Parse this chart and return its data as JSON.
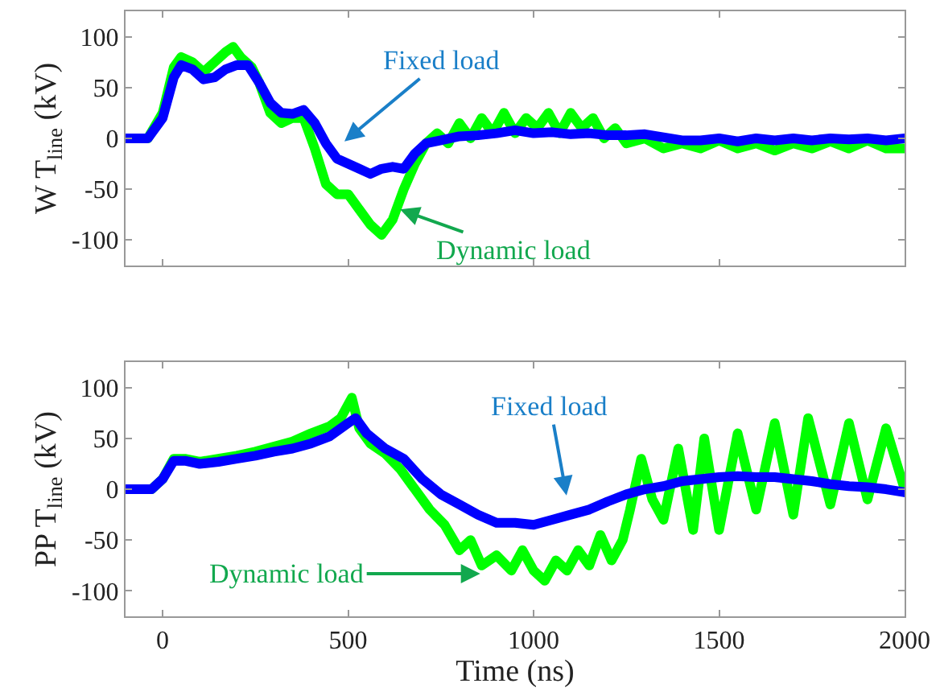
{
  "chart_data": [
    {
      "type": "line",
      "ylabel": "W T$_{line}$ (kV)",
      "xlim": [
        -100,
        2000
      ],
      "xticks": [
        {
          "value": 0,
          "label": null
        },
        {
          "value": 500,
          "label": null
        },
        {
          "value": 1000,
          "label": null
        },
        {
          "value": 1500,
          "label": null
        },
        {
          "value": 2000,
          "label": null
        }
      ],
      "ylim": [
        -125,
        125
      ],
      "yticks": [
        -100,
        -50,
        0,
        50,
        100
      ],
      "tick_labels": "y",
      "annotations": [
        "Fixed load",
        {
          "text": "Dynamic load",
          "x": 640,
          "y": -70
        }
      ],
      "series": [
        {
          "color": "#00ff00",
          "x": [
            -100,
            -40,
            0,
            30,
            50,
            80,
            110,
            140,
            170,
            190,
            210,
            240,
            260,
            290,
            320,
            350,
            380,
            410,
            440,
            470,
            500,
            530,
            560,
            590,
            620,
            650,
            680,
            710,
            740,
            770,
            800,
            830,
            860,
            890,
            920,
            950,
            980,
            1010,
            1040,
            1070,
            1100,
            1130,
            1160,
            1190,
            1220,
            1250,
            1300,
            1350,
            1400,
            1450,
            1500,
            1550,
            1600,
            1650,
            1700,
            1750,
            1800,
            1850,
            1900,
            1950,
            2000
          ],
          "values": [
            0,
            0,
            25,
            70,
            80,
            75,
            65,
            75,
            85,
            90,
            80,
            70,
            55,
            25,
            15,
            20,
            20,
            -10,
            -45,
            -55,
            -55,
            -70,
            -85,
            -95,
            -80,
            -50,
            -25,
            -5,
            5,
            -5,
            15,
            0,
            20,
            5,
            25,
            5,
            20,
            10,
            25,
            5,
            25,
            10,
            20,
            0,
            10,
            -5,
            0,
            -10,
            -5,
            -10,
            -2,
            -10,
            -5,
            -12,
            -5,
            -10,
            -3,
            -10,
            -2,
            -10,
            -10
          ]
        },
        {
          "color": "#0000ff",
          "x": [
            -100,
            -40,
            0,
            30,
            50,
            80,
            110,
            140,
            170,
            200,
            230,
            260,
            290,
            320,
            350,
            380,
            410,
            440,
            470,
            500,
            530,
            560,
            590,
            620,
            650,
            680,
            710,
            750,
            800,
            850,
            900,
            950,
            1000,
            1050,
            1100,
            1150,
            1200,
            1250,
            1300,
            1350,
            1400,
            1450,
            1500,
            1550,
            1600,
            1650,
            1700,
            1750,
            1800,
            1850,
            1900,
            1950,
            2000
          ],
          "values": [
            0,
            0,
            20,
            60,
            72,
            68,
            58,
            60,
            68,
            72,
            72,
            55,
            35,
            25,
            24,
            28,
            15,
            -5,
            -20,
            -25,
            -30,
            -35,
            -30,
            -28,
            -30,
            -15,
            -5,
            -2,
            2,
            3,
            5,
            8,
            5,
            6,
            4,
            5,
            3,
            3,
            4,
            1,
            -2,
            -2,
            0,
            -3,
            0,
            -2,
            0,
            -2,
            0,
            -1,
            0,
            -2,
            0
          ]
        }
      ]
    },
    {
      "type": "line",
      "ylabel": "PP T$_{line}$ (kV)",
      "xlabel": "Time (ns)",
      "xlim": [
        -100,
        2000
      ],
      "xticks": [
        0,
        500,
        1000,
        1500,
        2000
      ],
      "ylim": [
        -125,
        125
      ],
      "yticks": [
        -100,
        -50,
        0,
        50,
        100
      ],
      "annotations": [
        "Fixed load",
        {
          "text": "Dynamic load",
          "x": 856,
          "y": -83
        }
      ],
      "series": [
        {
          "color": "#00ff00",
          "x": [
            -100,
            -30,
            0,
            30,
            60,
            100,
            150,
            200,
            250,
            300,
            350,
            400,
            450,
            480,
            510,
            530,
            560,
            600,
            640,
            680,
            720,
            760,
            800,
            830,
            860,
            900,
            940,
            970,
            1000,
            1030,
            1060,
            1090,
            1120,
            1150,
            1180,
            1210,
            1240,
            1260,
            1290,
            1320,
            1350,
            1390,
            1430,
            1460,
            1500,
            1550,
            1600,
            1650,
            1700,
            1740,
            1800,
            1850,
            1900,
            1950,
            2000
          ],
          "values": [
            0,
            0,
            10,
            30,
            30,
            27,
            30,
            33,
            37,
            42,
            47,
            55,
            62,
            70,
            90,
            60,
            45,
            35,
            20,
            0,
            -20,
            -35,
            -60,
            -50,
            -75,
            -65,
            -80,
            -60,
            -80,
            -90,
            -70,
            -80,
            -60,
            -75,
            -45,
            -70,
            -50,
            -20,
            30,
            -10,
            -30,
            40,
            -40,
            50,
            -40,
            55,
            -20,
            65,
            -25,
            70,
            -15,
            65,
            -10,
            60,
            0
          ]
        },
        {
          "color": "#0000ff",
          "x": [
            -100,
            -30,
            0,
            30,
            60,
            100,
            150,
            200,
            250,
            300,
            350,
            400,
            450,
            500,
            520,
            550,
            600,
            650,
            700,
            750,
            800,
            850,
            900,
            950,
            1000,
            1050,
            1100,
            1150,
            1200,
            1250,
            1300,
            1350,
            1400,
            1450,
            1500,
            1550,
            1600,
            1650,
            1700,
            1750,
            1800,
            1850,
            1900,
            1950,
            2000
          ],
          "values": [
            0,
            0,
            10,
            28,
            28,
            25,
            27,
            30,
            33,
            37,
            40,
            45,
            52,
            65,
            70,
            55,
            40,
            30,
            10,
            -5,
            -15,
            -25,
            -33,
            -33,
            -35,
            -30,
            -25,
            -20,
            -12,
            -5,
            0,
            3,
            8,
            10,
            12,
            13,
            12,
            12,
            10,
            8,
            5,
            3,
            2,
            0,
            -3
          ]
        }
      ]
    }
  ]
}
